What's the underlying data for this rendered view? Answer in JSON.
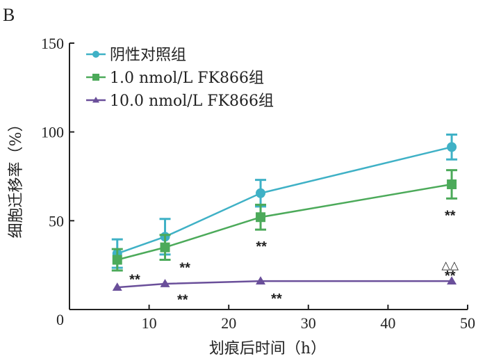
{
  "panel_label": "B",
  "chart_data": {
    "type": "line",
    "title": "",
    "xlabel": "划痕后时间（h）",
    "ylabel": "细胞迁移率（%）",
    "xlim": [
      0,
      50
    ],
    "ylim": [
      0,
      150
    ],
    "x_ticks": [
      10,
      20,
      30,
      40,
      50
    ],
    "y_ticks": [
      0,
      50,
      100,
      150
    ],
    "x_tick_labels": [
      "10",
      "20",
      "30",
      "40",
      "50"
    ],
    "y_tick_labels": [
      "0",
      "50",
      "100",
      "150"
    ],
    "grid": false,
    "legend_position": "top-left",
    "x": [
      6,
      12,
      24,
      48
    ],
    "series": [
      {
        "name": "阴性对照组",
        "color": "#3fb1c6",
        "marker": "circle",
        "values": [
          31.5,
          41,
          65.5,
          91.5
        ],
        "errors": [
          8,
          10,
          7.5,
          7
        ]
      },
      {
        "name": "1.0 nmol/L FK866组",
        "color": "#4caa5a",
        "marker": "square",
        "values": [
          28,
          35,
          52,
          70.5
        ],
        "errors": [
          6,
          7,
          7,
          8
        ]
      },
      {
        "name": "10.0 nmol/L FK866组",
        "color": "#6a4f9a",
        "marker": "triangle",
        "values": [
          12.5,
          14.5,
          16,
          16
        ],
        "errors": [
          0,
          0,
          0,
          0
        ]
      }
    ],
    "annotations": [
      {
        "text": "**",
        "x": 14.5,
        "y": 24
      },
      {
        "text": "**",
        "x": 24.1,
        "y": 36
      },
      {
        "text": "**",
        "x": 47.8,
        "y": 53.5
      },
      {
        "text": "**",
        "x": 8.2,
        "y": 17.5
      },
      {
        "text": "**",
        "x": 14.2,
        "y": 6
      },
      {
        "text": "**",
        "x": 26,
        "y": 6.6
      },
      {
        "text": "**",
        "x": 47.8,
        "y": 19.5
      },
      {
        "text": "△△",
        "x": 47.8,
        "y": 26
      }
    ]
  }
}
